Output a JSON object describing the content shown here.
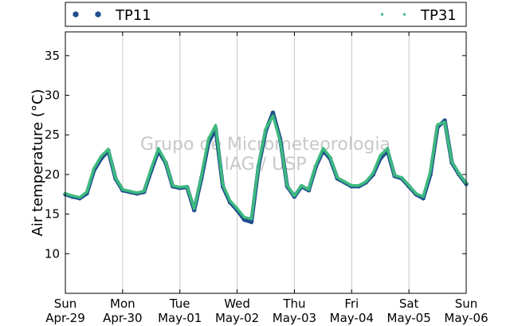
{
  "chart_data": {
    "type": "line",
    "ylabel": "Air temperature (°C)",
    "ylim": [
      5,
      38
    ],
    "yticks": [
      10,
      15,
      20,
      25,
      30,
      35
    ],
    "xlim": [
      "2015-04-29 00:00",
      "2015-05-06 00:00"
    ],
    "xticks": [
      {
        "x": "2015-04-29",
        "line1": "Sun",
        "line2": "Apr-29"
      },
      {
        "x": "2015-04-30",
        "line1": "Mon",
        "line2": "Apr-30"
      },
      {
        "x": "2015-05-01",
        "line1": "Tue",
        "line2": "May-01"
      },
      {
        "x": "2015-05-02",
        "line1": "Wed",
        "line2": "May-02"
      },
      {
        "x": "2015-05-03",
        "line1": "Thu",
        "line2": "May-03"
      },
      {
        "x": "2015-05-04",
        "line1": "Fri",
        "line2": "May-04"
      },
      {
        "x": "2015-05-05",
        "line1": "Sat",
        "line2": "May-05"
      },
      {
        "x": "2015-05-06",
        "line1": "Sun",
        "line2": "May-06"
      }
    ],
    "grid": "vertical",
    "legend_position": "top",
    "watermark": [
      "Grupo de Micrometeorologia",
      "IAG / USP"
    ],
    "series": [
      {
        "name": "TP11",
        "color": "#1f4e8c",
        "marker": "hexagon",
        "x": [
          "2015-04-29 00:00",
          "2015-04-29 03:00",
          "2015-04-29 06:00",
          "2015-04-29 09:00",
          "2015-04-29 12:00",
          "2015-04-29 15:00",
          "2015-04-29 18:00",
          "2015-04-29 21:00",
          "2015-04-30 00:00",
          "2015-04-30 03:00",
          "2015-04-30 06:00",
          "2015-04-30 09:00",
          "2015-04-30 12:00",
          "2015-04-30 15:00",
          "2015-04-30 18:00",
          "2015-04-30 21:00",
          "2015-05-01 00:00",
          "2015-05-01 03:00",
          "2015-05-01 06:00",
          "2015-05-01 09:00",
          "2015-05-01 12:00",
          "2015-05-01 15:00",
          "2015-05-01 18:00",
          "2015-05-01 21:00",
          "2015-05-02 00:00",
          "2015-05-02 03:00",
          "2015-05-02 06:00",
          "2015-05-02 09:00",
          "2015-05-02 12:00",
          "2015-05-02 15:00",
          "2015-05-02 18:00",
          "2015-05-02 21:00",
          "2015-05-03 00:00",
          "2015-05-03 03:00",
          "2015-05-03 06:00",
          "2015-05-03 09:00",
          "2015-05-03 12:00",
          "2015-05-03 15:00",
          "2015-05-03 18:00",
          "2015-05-03 21:00",
          "2015-05-04 00:00",
          "2015-05-04 03:00",
          "2015-05-04 06:00",
          "2015-05-04 09:00",
          "2015-05-04 12:00",
          "2015-05-04 15:00",
          "2015-05-04 18:00",
          "2015-05-04 21:00",
          "2015-05-05 00:00",
          "2015-05-05 03:00",
          "2015-05-05 06:00",
          "2015-05-05 09:00",
          "2015-05-05 12:00",
          "2015-05-05 15:00",
          "2015-05-05 18:00",
          "2015-05-05 21:00",
          "2015-05-06 00:00"
        ],
        "values": [
          17.5,
          17.2,
          17.0,
          17.6,
          20.5,
          22.0,
          23.0,
          19.5,
          18.0,
          17.8,
          17.6,
          17.8,
          20.5,
          23.0,
          21.5,
          18.5,
          18.3,
          18.4,
          15.5,
          19.5,
          24.0,
          25.8,
          18.5,
          16.5,
          15.5,
          14.3,
          14.0,
          21.0,
          25.5,
          27.8,
          24.5,
          18.5,
          17.2,
          18.5,
          18.0,
          21.0,
          23.0,
          22.0,
          19.5,
          19.0,
          18.5,
          18.5,
          19.0,
          20.0,
          22.0,
          23.0,
          19.8,
          19.5,
          18.5,
          17.5,
          17.0,
          20.0,
          26.0,
          26.8,
          21.5,
          20.0,
          18.8
        ]
      },
      {
        "name": "TP31",
        "color": "#3dbb7e",
        "marker": "square",
        "x": [
          "2015-04-29 00:00",
          "2015-04-29 03:00",
          "2015-04-29 06:00",
          "2015-04-29 09:00",
          "2015-04-29 12:00",
          "2015-04-29 15:00",
          "2015-04-29 18:00",
          "2015-04-29 21:00",
          "2015-04-30 00:00",
          "2015-04-30 03:00",
          "2015-04-30 06:00",
          "2015-04-30 09:00",
          "2015-04-30 12:00",
          "2015-04-30 15:00",
          "2015-04-30 18:00",
          "2015-04-30 21:00",
          "2015-05-01 00:00",
          "2015-05-01 03:00",
          "2015-05-01 06:00",
          "2015-05-01 09:00",
          "2015-05-01 12:00",
          "2015-05-01 15:00",
          "2015-05-01 18:00",
          "2015-05-01 21:00",
          "2015-05-02 00:00",
          "2015-05-02 03:00",
          "2015-05-02 06:00",
          "2015-05-02 09:00",
          "2015-05-02 12:00",
          "2015-05-02 15:00",
          "2015-05-02 18:00",
          "2015-05-02 21:00",
          "2015-05-03 00:00",
          "2015-05-03 03:00",
          "2015-05-03 06:00",
          "2015-05-03 09:00",
          "2015-05-03 12:00",
          "2015-05-03 15:00",
          "2015-05-03 18:00",
          "2015-05-03 21:00",
          "2015-05-04 00:00",
          "2015-05-04 03:00",
          "2015-05-04 06:00",
          "2015-05-04 09:00",
          "2015-05-04 12:00",
          "2015-05-04 15:00",
          "2015-05-04 18:00",
          "2015-05-04 21:00",
          "2015-05-05 00:00",
          "2015-05-05 03:00",
          "2015-05-05 06:00",
          "2015-05-05 09:00",
          "2015-05-05 12:00",
          "2015-05-05 15:00",
          "2015-05-05 18:00",
          "2015-05-05 21:00",
          "2015-05-06 00:00"
        ],
        "values": [
          17.6,
          17.3,
          17.1,
          17.8,
          20.8,
          22.3,
          23.2,
          19.6,
          18.1,
          17.9,
          17.7,
          17.9,
          20.8,
          23.3,
          21.6,
          18.6,
          18.4,
          18.5,
          15.7,
          19.8,
          24.5,
          26.2,
          18.7,
          16.7,
          15.7,
          14.6,
          14.4,
          21.3,
          25.8,
          27.4,
          24.3,
          18.6,
          17.3,
          18.6,
          18.1,
          21.2,
          23.3,
          22.2,
          19.6,
          19.1,
          18.6,
          18.6,
          19.1,
          20.2,
          22.4,
          23.3,
          19.9,
          19.6,
          18.6,
          17.6,
          17.2,
          20.4,
          26.3,
          26.6,
          21.6,
          20.1,
          18.9
        ]
      }
    ]
  }
}
